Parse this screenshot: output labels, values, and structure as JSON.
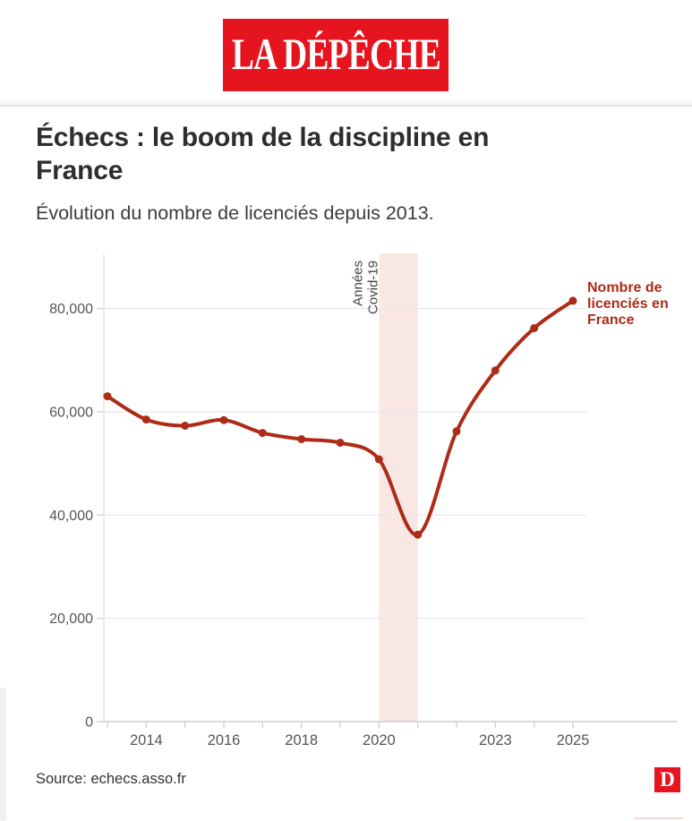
{
  "header": {
    "logo_text": "LA DÉPÊCHE",
    "logo_bg": "#e5141e",
    "logo_text_color": "#ffffff"
  },
  "article": {
    "title": "Échecs : le boom de la discipline en\nFrance",
    "subtitle": "Évolution du nombre de licenciés depuis 2013."
  },
  "chart_data": {
    "type": "line",
    "title": "Échecs : le boom de la discipline en France",
    "subtitle": "Évolution du nombre de licenciés depuis 2013.",
    "x": [
      2013,
      2014,
      2015,
      2016,
      2017,
      2018,
      2019,
      2020,
      2021,
      2022,
      2023,
      2024,
      2025
    ],
    "series": [
      {
        "name": "Nombre de licenciés en France",
        "values": [
          63000,
          58500,
          57300,
          58400,
          55900,
          54700,
          54000,
          50800,
          36200,
          56200,
          68000,
          76200,
          81500
        ],
        "color": "#ad2b17",
        "end_label": "Nombre de\nlicenciés en\nFrance"
      }
    ],
    "xlim": [
      2013,
      2025
    ],
    "ylim": [
      0,
      90500
    ],
    "yticks": [
      0,
      20000,
      40000,
      60000,
      80000
    ],
    "ytick_labels": [
      "0",
      "20,000",
      "40,000",
      "60,000",
      "80,000"
    ],
    "xticks_labeled": [
      2014,
      2016,
      2018,
      2020,
      2023,
      2025
    ],
    "xtick_labels": [
      "2014",
      "2016",
      "2018",
      "2020",
      "2023",
      "2025"
    ],
    "band": {
      "x0": 2020,
      "x1": 2021,
      "color": "#f9e7e4",
      "label": "Années\nCovid-19"
    },
    "grid": "horizontal",
    "legend_position": "end-of-line",
    "grid_color": "#e9e9e9",
    "axis_color": "#c6c6c6",
    "yaxis_line_color": "#dedede",
    "tick_color": "#cfcfcf",
    "tick_label_color": "#555555",
    "annotation_color": "#444444"
  },
  "footer": {
    "source": "Source: echecs.asso.fr",
    "d_logo_letter": "D",
    "d_logo_bg": "#e5141e"
  }
}
